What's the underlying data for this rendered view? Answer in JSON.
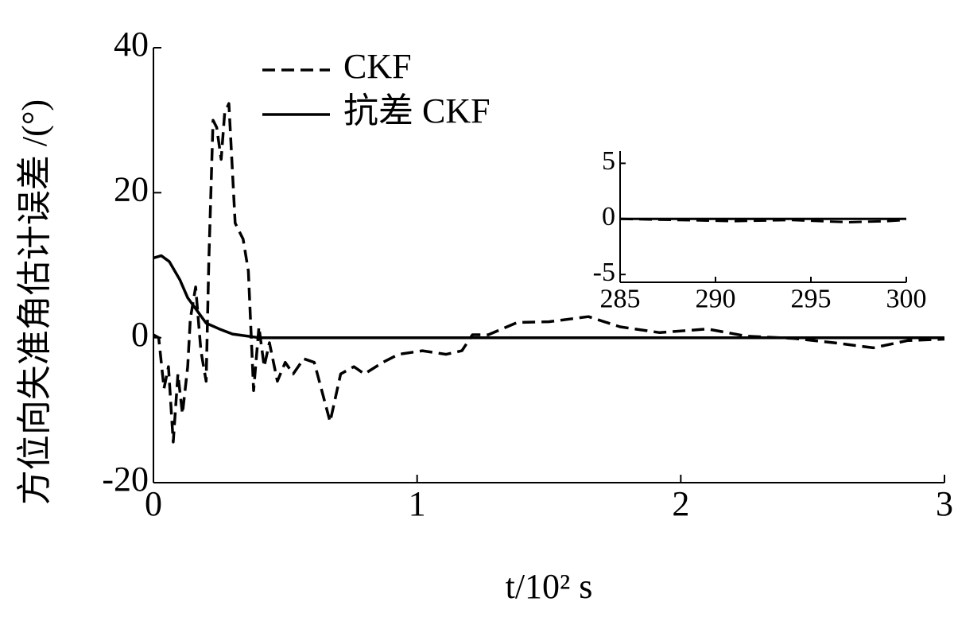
{
  "chart_data": [
    {
      "type": "line",
      "ylabel": "方位向失准角估计误差 /(°)",
      "xlabel": "t/10² s",
      "xlim": [
        0,
        3
      ],
      "xticks": [
        0,
        1,
        2,
        3
      ],
      "ylim": [
        -20,
        40
      ],
      "yticks": [
        -20,
        0,
        20,
        40
      ],
      "legend": "upper left",
      "series": [
        {
          "name": "CKF",
          "color": "#000000",
          "linestyle": "dashed",
          "x": [
            0,
            0.02,
            0.04,
            0.057,
            0.075,
            0.093,
            0.11,
            0.13,
            0.14,
            0.16,
            0.18,
            0.2,
            0.21,
            0.226,
            0.24,
            0.257,
            0.27,
            0.286,
            0.31,
            0.34,
            0.36,
            0.38,
            0.4,
            0.42,
            0.44,
            0.47,
            0.5,
            0.53,
            0.57,
            0.61,
            0.67,
            0.71,
            0.76,
            0.8,
            0.87,
            0.93,
            1.02,
            1.11,
            1.17,
            1.21,
            1.27,
            1.38,
            1.5,
            1.65,
            1.77,
            1.92,
            2.1,
            2.25,
            2.43,
            2.58,
            2.73,
            2.86,
            3
          ],
          "values": [
            0.4,
            0,
            -7,
            -4,
            -14.4,
            -5,
            -10.5,
            -4,
            2.6,
            7,
            -1.8,
            -6,
            10.3,
            30,
            29,
            24.6,
            31,
            32.3,
            15.8,
            13.6,
            9.2,
            -7.3,
            1.5,
            -4,
            -0.7,
            -6,
            -3.4,
            -5,
            -2.9,
            -3.4,
            -11.6,
            -5,
            -4,
            -5,
            -3.4,
            -2.3,
            -1.8,
            -2.3,
            -1.8,
            0.4,
            0.4,
            2.1,
            2.2,
            2.9,
            1.5,
            0.7,
            1.2,
            0.2,
            -0.1,
            -0.7,
            -1.4,
            -0.4,
            -0.2
          ]
        },
        {
          "name": "抗差 CKF",
          "color": "#000000",
          "linestyle": "solid",
          "x": [
            0,
            0.03,
            0.06,
            0.1,
            0.13,
            0.16,
            0.2,
            0.25,
            0.3,
            0.4,
            1,
            2,
            2.5,
            3
          ],
          "values": [
            11,
            11.3,
            10.5,
            8,
            5.5,
            4,
            2,
            1.2,
            0.5,
            0,
            0,
            0,
            0,
            0
          ]
        }
      ]
    },
    {
      "type": "line",
      "xlim": [
        285,
        300
      ],
      "xticks": [
        285,
        290,
        295,
        300
      ],
      "ylim": [
        -5.7,
        6.1
      ],
      "yticks": [
        -5,
        0,
        5
      ],
      "series": [
        {
          "color": "#000000",
          "linestyle": "dashed",
          "x": [
            285,
            288,
            291,
            294,
            297,
            299,
            300
          ],
          "values": [
            0,
            -0.1,
            -0.2,
            -0.1,
            -0.3,
            -0.2,
            -0.1
          ]
        },
        {
          "color": "#000000",
          "linestyle": "solid",
          "x": [
            285,
            290,
            295,
            300
          ],
          "values": [
            0,
            0,
            0,
            0
          ]
        }
      ]
    }
  ]
}
